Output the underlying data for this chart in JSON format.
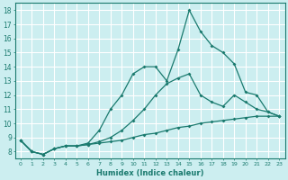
{
  "xlabel": "Humidex (Indice chaleur)",
  "background_color": "#cceef0",
  "grid_color": "#ffffff",
  "line_color": "#1a7a6e",
  "xlim": [
    -0.5,
    23.5
  ],
  "ylim": [
    7.5,
    18.5
  ],
  "x_ticks": [
    0,
    1,
    2,
    3,
    4,
    5,
    6,
    7,
    8,
    9,
    10,
    11,
    12,
    13,
    14,
    15,
    16,
    17,
    18,
    19,
    20,
    21,
    22,
    23
  ],
  "y_ticks": [
    8,
    9,
    10,
    11,
    12,
    13,
    14,
    15,
    16,
    17,
    18
  ],
  "line1_x": [
    0,
    1,
    2,
    3,
    4,
    5,
    6,
    7,
    8,
    9,
    10,
    11,
    12,
    13,
    14,
    15,
    16,
    17,
    18,
    19,
    20,
    21,
    22,
    23
  ],
  "line1_y": [
    8.8,
    8.0,
    7.8,
    8.2,
    8.4,
    8.4,
    8.5,
    8.6,
    8.7,
    8.8,
    9.0,
    9.2,
    9.3,
    9.5,
    9.7,
    9.8,
    10.0,
    10.1,
    10.2,
    10.3,
    10.4,
    10.5,
    10.5,
    10.5
  ],
  "line2_x": [
    0,
    1,
    2,
    3,
    4,
    5,
    6,
    7,
    8,
    9,
    10,
    11,
    12,
    13,
    14,
    15,
    16,
    17,
    18,
    19,
    20,
    21,
    22,
    23
  ],
  "line2_y": [
    8.8,
    8.0,
    7.8,
    8.2,
    8.4,
    8.4,
    8.5,
    8.7,
    9.0,
    9.5,
    10.2,
    11.0,
    12.0,
    12.8,
    13.2,
    13.5,
    12.0,
    11.5,
    11.2,
    12.0,
    11.5,
    11.0,
    10.8,
    10.5
  ],
  "line3_x": [
    0,
    1,
    2,
    3,
    4,
    5,
    6,
    7,
    8,
    9,
    10,
    11,
    12,
    13,
    14,
    15,
    16,
    17,
    18,
    19,
    20,
    21,
    22,
    23
  ],
  "line3_y": [
    8.8,
    8.0,
    7.8,
    8.2,
    8.4,
    8.4,
    8.6,
    9.5,
    11.0,
    12.0,
    13.5,
    14.0,
    14.0,
    13.0,
    15.2,
    18.0,
    16.5,
    15.5,
    15.0,
    14.2,
    12.2,
    12.0,
    10.8,
    10.5
  ]
}
